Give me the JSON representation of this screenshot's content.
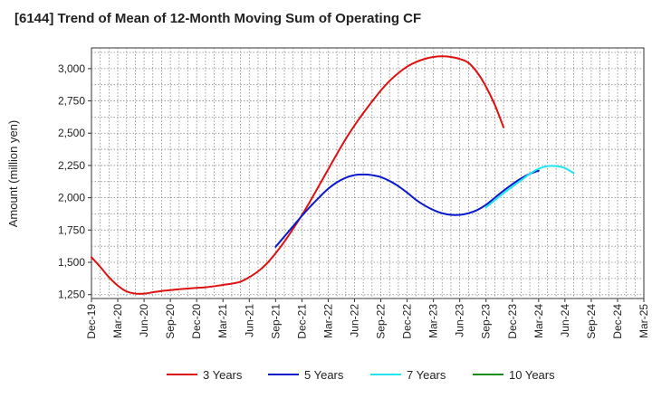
{
  "chart_data": {
    "type": "line",
    "title": "[6144]  Trend of Mean of 12-Month Moving Sum of Operating CF",
    "xlabel": "",
    "ylabel": "Amount (million yen)",
    "ylim": [
      1220,
      3160
    ],
    "yticks": [
      1250,
      1500,
      1750,
      2000,
      2250,
      2500,
      2750,
      3000
    ],
    "ytick_labels": [
      "1,250",
      "1,500",
      "1,750",
      "2,000",
      "2,250",
      "2,500",
      "2,750",
      "3,000"
    ],
    "x_start": "Dec-19",
    "x_end": "Mar-25",
    "x_tick_labels": [
      "Dec-19",
      "Mar-20",
      "Jun-20",
      "Sep-20",
      "Dec-20",
      "Mar-21",
      "Jun-21",
      "Sep-21",
      "Dec-21",
      "Mar-22",
      "Jun-22",
      "Sep-22",
      "Dec-22",
      "Mar-23",
      "Jun-23",
      "Sep-23",
      "Dec-23",
      "Mar-24",
      "Jun-24",
      "Sep-24",
      "Dec-24",
      "Mar-25"
    ],
    "grid": true,
    "legend_position": "bottom",
    "series": [
      {
        "name": "3 Years",
        "color": "#dd1111",
        "points": [
          [
            0,
            1540
          ],
          [
            1,
            1465
          ],
          [
            2,
            1385
          ],
          [
            3,
            1320
          ],
          [
            4,
            1275
          ],
          [
            5,
            1258
          ],
          [
            6,
            1258
          ],
          [
            7,
            1268
          ],
          [
            8,
            1278
          ],
          [
            9,
            1285
          ],
          [
            10,
            1292
          ],
          [
            11,
            1297
          ],
          [
            12,
            1302
          ],
          [
            13,
            1307
          ],
          [
            14,
            1315
          ],
          [
            15,
            1325
          ],
          [
            16,
            1335
          ],
          [
            17,
            1350
          ],
          [
            18,
            1385
          ],
          [
            19,
            1430
          ],
          [
            20,
            1490
          ],
          [
            21,
            1570
          ],
          [
            22,
            1660
          ],
          [
            23,
            1760
          ],
          [
            24,
            1865
          ],
          [
            25,
            1980
          ],
          [
            26,
            2100
          ],
          [
            27,
            2220
          ],
          [
            28,
            2340
          ],
          [
            29,
            2455
          ],
          [
            30,
            2560
          ],
          [
            31,
            2655
          ],
          [
            32,
            2745
          ],
          [
            33,
            2830
          ],
          [
            34,
            2905
          ],
          [
            35,
            2965
          ],
          [
            36,
            3015
          ],
          [
            37,
            3050
          ],
          [
            38,
            3075
          ],
          [
            39,
            3090
          ],
          [
            40,
            3095
          ],
          [
            41,
            3090
          ],
          [
            42,
            3075
          ],
          [
            43,
            3045
          ],
          [
            44,
            2970
          ],
          [
            45,
            2860
          ],
          [
            46,
            2720
          ],
          [
            47,
            2545
          ]
        ]
      },
      {
        "name": "5 Years",
        "color": "#0a1acc",
        "points": [
          [
            21,
            1620
          ],
          [
            22,
            1700
          ],
          [
            23,
            1780
          ],
          [
            24,
            1860
          ],
          [
            25,
            1935
          ],
          [
            26,
            2005
          ],
          [
            27,
            2070
          ],
          [
            28,
            2120
          ],
          [
            29,
            2155
          ],
          [
            30,
            2175
          ],
          [
            31,
            2180
          ],
          [
            32,
            2175
          ],
          [
            33,
            2160
          ],
          [
            34,
            2130
          ],
          [
            35,
            2090
          ],
          [
            36,
            2040
          ],
          [
            37,
            1985
          ],
          [
            38,
            1940
          ],
          [
            39,
            1905
          ],
          [
            40,
            1880
          ],
          [
            41,
            1868
          ],
          [
            42,
            1868
          ],
          [
            43,
            1880
          ],
          [
            44,
            1905
          ],
          [
            45,
            1945
          ],
          [
            46,
            2000
          ],
          [
            47,
            2055
          ],
          [
            48,
            2105
          ],
          [
            49,
            2150
          ],
          [
            50,
            2185
          ],
          [
            51,
            2210
          ]
        ]
      },
      {
        "name": "7 Years",
        "color": "#22e6ee",
        "points": [
          [
            45,
            1925
          ],
          [
            46,
            1980
          ],
          [
            47,
            2035
          ],
          [
            48,
            2085
          ],
          [
            49,
            2135
          ],
          [
            50,
            2185
          ],
          [
            51,
            2225
          ],
          [
            52,
            2245
          ],
          [
            53,
            2245
          ],
          [
            54,
            2230
          ],
          [
            55,
            2190
          ]
        ]
      },
      {
        "name": "10 Years",
        "color": "#1a8a1a",
        "points": []
      }
    ]
  }
}
